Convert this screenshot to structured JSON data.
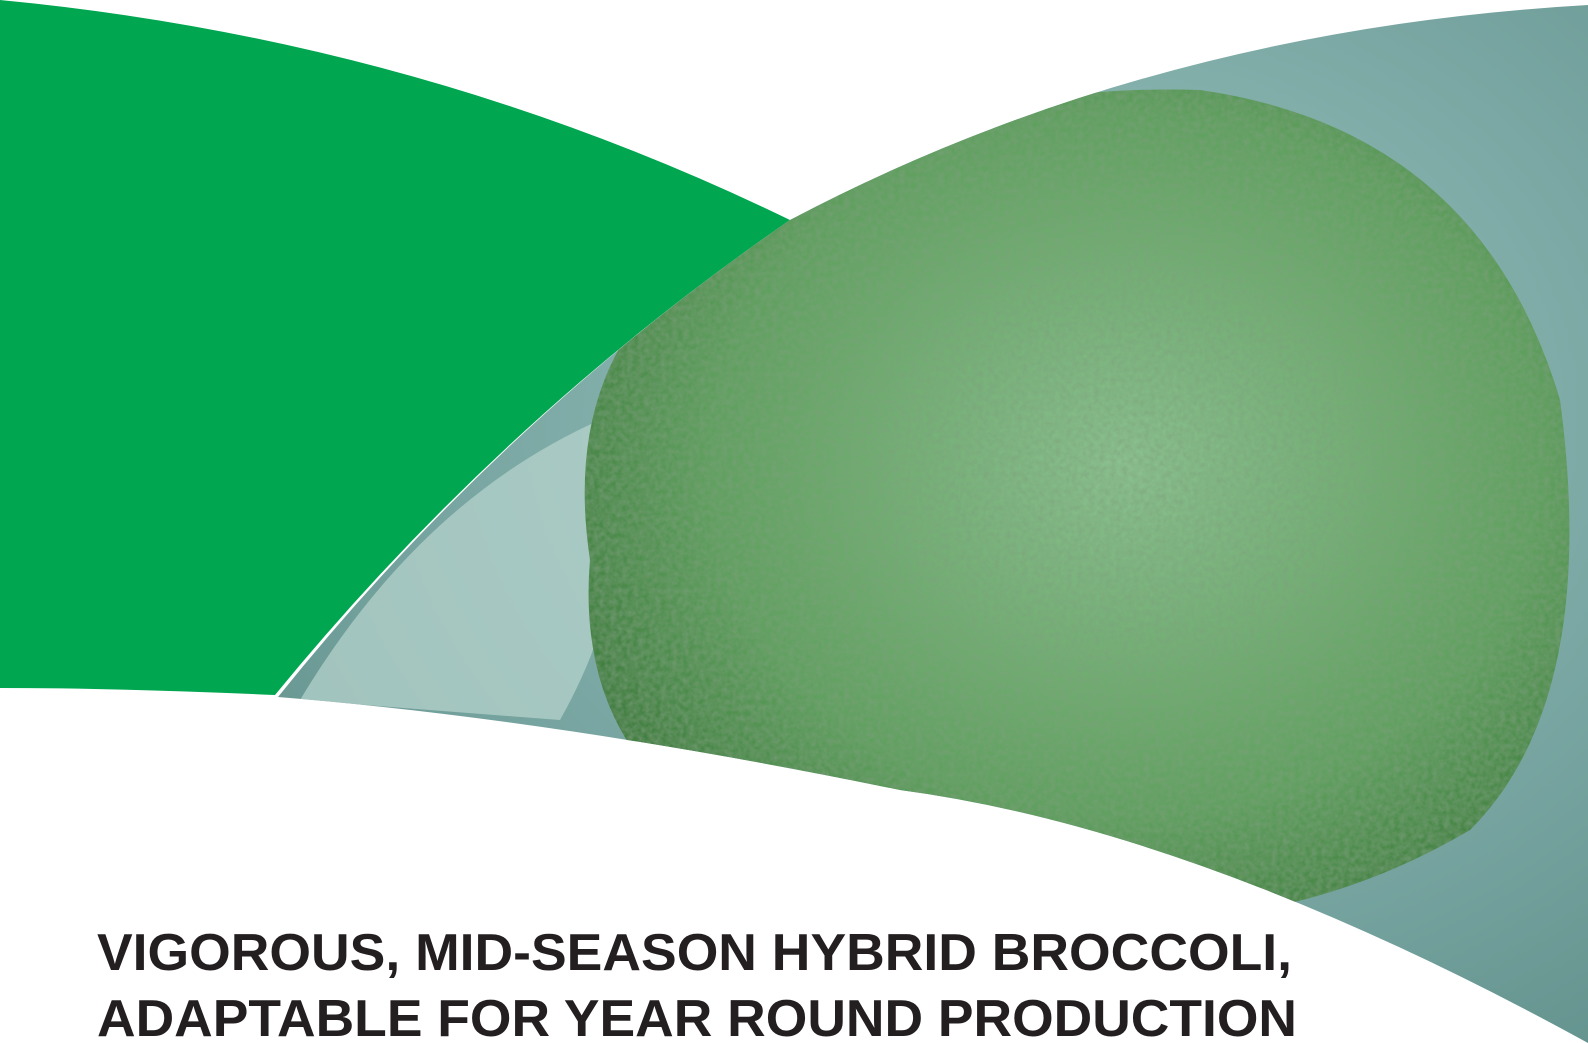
{
  "heading": {
    "lines": [
      "VIGOROUS, MID-SEASON HYBRID BROCCOLI,",
      "ADAPTABLE FOR YEAR ROUND PRODUCTION"
    ]
  }
}
